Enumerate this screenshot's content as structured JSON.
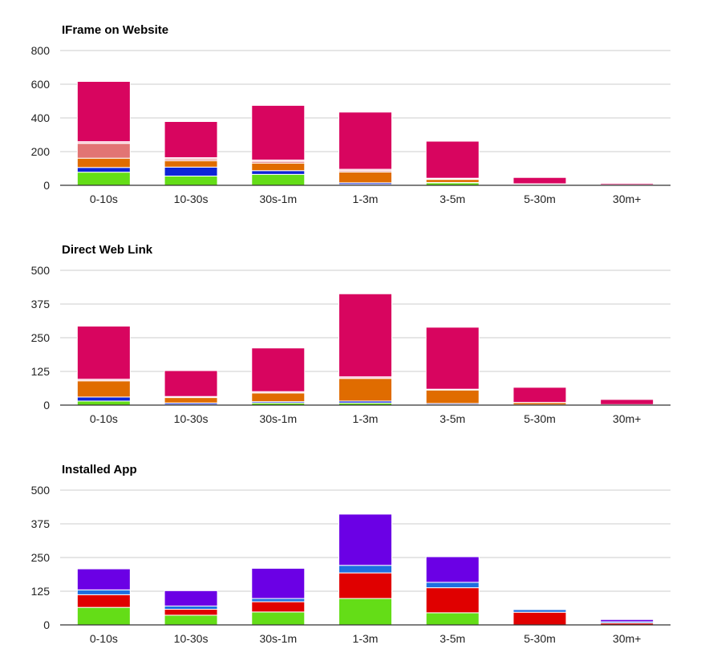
{
  "colors": {
    "series": [
      "#64dd17",
      "#0d24d6",
      "#1e6fe0",
      "#e06c00",
      "#e27474",
      "#fbb8c8",
      "#d8055f",
      "#e00000",
      "#6b00e5"
    ],
    "grid": "#cccccc",
    "axis": "#333333",
    "text": "#222222"
  },
  "chart_data": [
    {
      "type": "bar",
      "stacked": true,
      "title": "IFrame on Website",
      "categories": [
        "0-10s",
        "10-30s",
        "30s-1m",
        "1-3m",
        "3-5m",
        "5-30m",
        "30m+"
      ],
      "ylim": [
        0,
        800
      ],
      "yticks": [
        "0",
        "200",
        "400",
        "600",
        "800"
      ],
      "grid": true,
      "legend": "none",
      "series": [
        {
          "color": "#64dd17",
          "values": [
            78,
            55,
            65,
            5,
            15,
            0,
            0
          ]
        },
        {
          "color": "#0d24d6",
          "values": [
            28,
            53,
            22,
            10,
            2,
            0,
            0
          ]
        },
        {
          "color": "#e06c00",
          "values": [
            55,
            38,
            45,
            64,
            18,
            5,
            2
          ]
        },
        {
          "color": "#e27474",
          "values": [
            88,
            10,
            10,
            8,
            3,
            2,
            0
          ]
        },
        {
          "color": "#fbb8c8",
          "values": [
            10,
            8,
            8,
            8,
            4,
            2,
            2
          ]
        },
        {
          "color": "#d8055f",
          "values": [
            358,
            215,
            325,
            340,
            220,
            38,
            8
          ]
        },
        {
          "color": "#fbb8c8",
          "values": [
            5,
            4,
            5,
            6,
            3,
            3,
            1
          ]
        }
      ]
    },
    {
      "type": "bar",
      "stacked": true,
      "title": "Direct Web Link",
      "categories": [
        "0-10s",
        "10-30s",
        "30s-1m",
        "1-3m",
        "3-5m",
        "5-30m",
        "30m+"
      ],
      "ylim": [
        0,
        500
      ],
      "yticks": [
        "0",
        "125",
        "250",
        "375",
        "500"
      ],
      "grid": true,
      "legend": "none",
      "series": [
        {
          "color": "#64dd17",
          "values": [
            15,
            2,
            8,
            8,
            2,
            0,
            0
          ]
        },
        {
          "color": "#0d24d6",
          "values": [
            15,
            6,
            5,
            7,
            4,
            1,
            0
          ]
        },
        {
          "color": "#e06c00",
          "values": [
            60,
            20,
            32,
            84,
            50,
            8,
            2
          ]
        },
        {
          "color": "#fbb8c8",
          "values": [
            6,
            4,
            5,
            6,
            3,
            1,
            0
          ]
        },
        {
          "color": "#d8055f",
          "values": [
            197,
            96,
            162,
            308,
            230,
            56,
            19
          ]
        }
      ]
    },
    {
      "type": "bar",
      "stacked": true,
      "title": "Installed App",
      "categories": [
        "0-10s",
        "10-30s",
        "30s-1m",
        "1-3m",
        "3-5m",
        "5-30m",
        "30m+"
      ],
      "ylim": [
        0,
        500
      ],
      "yticks": [
        "0",
        "125",
        "250",
        "375",
        "500"
      ],
      "grid": true,
      "legend": "none",
      "series": [
        {
          "color": "#64dd17",
          "values": [
            65,
            36,
            48,
            98,
            45,
            0,
            0
          ]
        },
        {
          "color": "#e00000",
          "values": [
            47,
            22,
            38,
            95,
            93,
            47,
            7
          ]
        },
        {
          "color": "#1e6fe0",
          "values": [
            18,
            12,
            12,
            28,
            20,
            10,
            5
          ]
        },
        {
          "color": "#6b00e5",
          "values": [
            78,
            57,
            112,
            190,
            95,
            3,
            8
          ]
        }
      ]
    }
  ]
}
